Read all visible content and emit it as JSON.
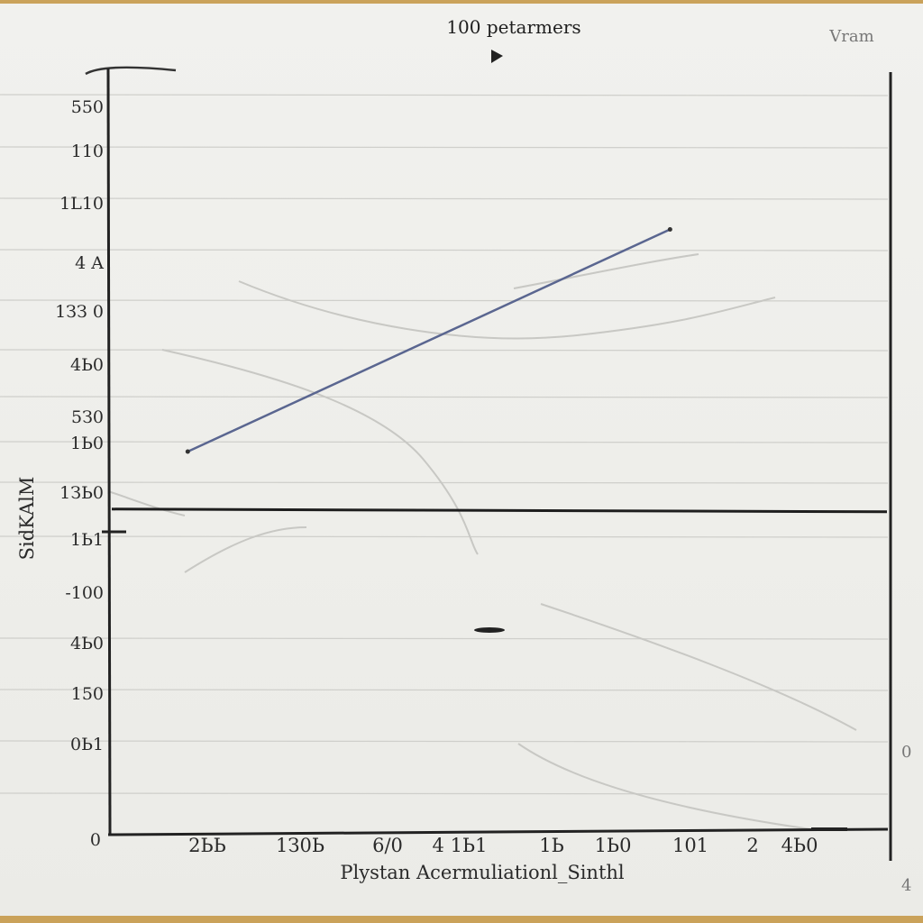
{
  "chart_data": {
    "type": "line",
    "title": "100 petarmers",
    "corner_label": "Vram",
    "xlabel": "Plystan Acermuliationl_Sinthl",
    "ylabel": "SidKAlM",
    "y_tick_labels": [
      "550",
      "110",
      "1L10",
      "4 A",
      "1ЗЗ 0",
      "4Ь0",
      "5З0",
      "1Ь0",
      "1ЗЬ0",
      "1Ь1",
      "-100",
      "4Ь0",
      "150",
      "0Ь1",
      "0"
    ],
    "x_tick_labels": [
      "2ЬЬ",
      "1З0Ь",
      "6/0",
      "4 1Ь1",
      "1Ь",
      "1Ь0",
      "101",
      "2",
      "4Ь0"
    ],
    "right_labels": [
      "0",
      "4"
    ],
    "series": [
      {
        "x": [
          0.1,
          0.72
        ],
        "y": [
          1,
          1.58
        ]
      }
    ],
    "baseline": 0.85,
    "grid": true,
    "color": "#5a6690"
  }
}
